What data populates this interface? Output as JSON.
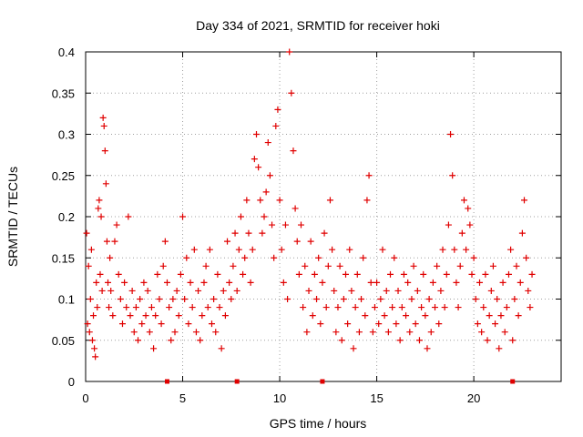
{
  "chart_data": {
    "type": "scatter",
    "title": "Day 334 of 2021, SRMTID for receiver hoki",
    "xlabel": "GPS time / hours",
    "ylabel": "SRMTID / TECUs",
    "xlim": [
      0,
      24.5
    ],
    "ylim": [
      0,
      0.4
    ],
    "x_ticks": [
      0,
      5,
      10,
      15,
      20
    ],
    "y_ticks": [
      0,
      0.05,
      0.1,
      0.15,
      0.2,
      0.25,
      0.3,
      0.35,
      0.4
    ],
    "x_tick_labels": [
      "0",
      "5",
      "10",
      "15",
      "20"
    ],
    "y_tick_labels": [
      "0",
      "0.05",
      "0.1",
      "0.15",
      "0.2",
      "0.25",
      "0.3",
      "0.35",
      "0.4"
    ],
    "grid": true,
    "marker": "plus",
    "color": "#e00000",
    "series": [
      {
        "name": "SRMTID",
        "points": [
          [
            0.05,
            0.18
          ],
          [
            0.1,
            0.07
          ],
          [
            0.15,
            0.14
          ],
          [
            0.2,
            0.06
          ],
          [
            0.25,
            0.1
          ],
          [
            0.3,
            0.16
          ],
          [
            0.35,
            0.05
          ],
          [
            0.4,
            0.08
          ],
          [
            0.45,
            0.04
          ],
          [
            0.5,
            0.03
          ],
          [
            0.55,
            0.12
          ],
          [
            0.6,
            0.09
          ],
          [
            0.65,
            0.21
          ],
          [
            0.7,
            0.22
          ],
          [
            0.75,
            0.13
          ],
          [
            0.8,
            0.2
          ],
          [
            0.85,
            0.11
          ],
          [
            0.9,
            0.32
          ],
          [
            0.95,
            0.31
          ],
          [
            1.0,
            0.28
          ],
          [
            1.05,
            0.24
          ],
          [
            1.1,
            0.17
          ],
          [
            1.15,
            0.12
          ],
          [
            1.2,
            0.09
          ],
          [
            1.25,
            0.15
          ],
          [
            1.3,
            0.11
          ],
          [
            1.4,
            0.08
          ],
          [
            1.5,
            0.17
          ],
          [
            1.6,
            0.19
          ],
          [
            1.7,
            0.13
          ],
          [
            1.8,
            0.1
          ],
          [
            1.9,
            0.07
          ],
          [
            2.0,
            0.12
          ],
          [
            2.1,
            0.09
          ],
          [
            2.2,
            0.2
          ],
          [
            2.3,
            0.08
          ],
          [
            2.4,
            0.11
          ],
          [
            2.5,
            0.06
          ],
          [
            2.6,
            0.09
          ],
          [
            2.7,
            0.05
          ],
          [
            2.8,
            0.1
          ],
          [
            2.9,
            0.07
          ],
          [
            3.0,
            0.12
          ],
          [
            3.1,
            0.08
          ],
          [
            3.2,
            0.11
          ],
          [
            3.3,
            0.06
          ],
          [
            3.4,
            0.09
          ],
          [
            3.5,
            0.04
          ],
          [
            3.6,
            0.08
          ],
          [
            3.7,
            0.13
          ],
          [
            3.8,
            0.1
          ],
          [
            3.9,
            0.07
          ],
          [
            4.0,
            0.14
          ],
          [
            4.1,
            0.17
          ],
          [
            4.2,
            0.12
          ],
          [
            4.3,
            0.09
          ],
          [
            4.4,
            0.05
          ],
          [
            4.5,
            0.1
          ],
          [
            4.6,
            0.06
          ],
          [
            4.7,
            0.11
          ],
          [
            4.8,
            0.08
          ],
          [
            4.9,
            0.13
          ],
          [
            5.0,
            0.2
          ],
          [
            5.1,
            0.1
          ],
          [
            5.2,
            0.15
          ],
          [
            5.3,
            0.07
          ],
          [
            5.4,
            0.12
          ],
          [
            5.5,
            0.09
          ],
          [
            5.6,
            0.16
          ],
          [
            5.7,
            0.06
          ],
          [
            5.8,
            0.11
          ],
          [
            5.9,
            0.05
          ],
          [
            6.0,
            0.08
          ],
          [
            6.1,
            0.12
          ],
          [
            6.2,
            0.14
          ],
          [
            6.3,
            0.09
          ],
          [
            6.4,
            0.16
          ],
          [
            6.5,
            0.07
          ],
          [
            6.6,
            0.1
          ],
          [
            6.7,
            0.06
          ],
          [
            6.8,
            0.13
          ],
          [
            6.9,
            0.09
          ],
          [
            7.0,
            0.04
          ],
          [
            7.1,
            0.11
          ],
          [
            7.2,
            0.08
          ],
          [
            7.3,
            0.17
          ],
          [
            7.4,
            0.12
          ],
          [
            7.5,
            0.1
          ],
          [
            7.6,
            0.14
          ],
          [
            7.7,
            0.18
          ],
          [
            7.8,
            0.11
          ],
          [
            7.9,
            0.16
          ],
          [
            8.0,
            0.2
          ],
          [
            8.1,
            0.13
          ],
          [
            8.2,
            0.15
          ],
          [
            8.3,
            0.22
          ],
          [
            8.4,
            0.18
          ],
          [
            8.5,
            0.12
          ],
          [
            8.6,
            0.16
          ],
          [
            8.7,
            0.27
          ],
          [
            8.8,
            0.3
          ],
          [
            8.9,
            0.26
          ],
          [
            9.0,
            0.22
          ],
          [
            9.1,
            0.18
          ],
          [
            9.2,
            0.2
          ],
          [
            9.3,
            0.23
          ],
          [
            9.4,
            0.29
          ],
          [
            9.5,
            0.25
          ],
          [
            9.6,
            0.19
          ],
          [
            9.7,
            0.15
          ],
          [
            9.8,
            0.31
          ],
          [
            9.9,
            0.33
          ],
          [
            10.0,
            0.22
          ],
          [
            10.1,
            0.16
          ],
          [
            10.2,
            0.12
          ],
          [
            10.3,
            0.19
          ],
          [
            10.4,
            0.1
          ],
          [
            10.5,
            0.4
          ],
          [
            10.6,
            0.35
          ],
          [
            10.7,
            0.28
          ],
          [
            10.8,
            0.21
          ],
          [
            10.9,
            0.17
          ],
          [
            11.0,
            0.13
          ],
          [
            11.1,
            0.19
          ],
          [
            11.2,
            0.09
          ],
          [
            11.3,
            0.14
          ],
          [
            11.4,
            0.06
          ],
          [
            11.5,
            0.11
          ],
          [
            11.6,
            0.17
          ],
          [
            11.7,
            0.08
          ],
          [
            11.8,
            0.13
          ],
          [
            11.9,
            0.1
          ],
          [
            12.0,
            0.15
          ],
          [
            12.1,
            0.07
          ],
          [
            12.2,
            0.12
          ],
          [
            12.3,
            0.18
          ],
          [
            12.4,
            0.09
          ],
          [
            12.5,
            0.14
          ],
          [
            12.6,
            0.22
          ],
          [
            12.7,
            0.16
          ],
          [
            12.8,
            0.11
          ],
          [
            12.9,
            0.06
          ],
          [
            13.0,
            0.09
          ],
          [
            13.1,
            0.14
          ],
          [
            13.2,
            0.05
          ],
          [
            13.3,
            0.1
          ],
          [
            13.4,
            0.13
          ],
          [
            13.5,
            0.07
          ],
          [
            13.6,
            0.16
          ],
          [
            13.7,
            0.11
          ],
          [
            13.8,
            0.04
          ],
          [
            13.9,
            0.09
          ],
          [
            14.0,
            0.13
          ],
          [
            14.1,
            0.06
          ],
          [
            14.2,
            0.1
          ],
          [
            14.3,
            0.15
          ],
          [
            14.4,
            0.08
          ],
          [
            14.5,
            0.22
          ],
          [
            14.6,
            0.25
          ],
          [
            14.7,
            0.12
          ],
          [
            14.8,
            0.06
          ],
          [
            14.9,
            0.09
          ],
          [
            15.0,
            0.12
          ],
          [
            15.1,
            0.07
          ],
          [
            15.2,
            0.1
          ],
          [
            15.3,
            0.16
          ],
          [
            15.4,
            0.08
          ],
          [
            15.5,
            0.11
          ],
          [
            15.6,
            0.06
          ],
          [
            15.7,
            0.13
          ],
          [
            15.8,
            0.09
          ],
          [
            15.9,
            0.15
          ],
          [
            16.0,
            0.07
          ],
          [
            16.1,
            0.11
          ],
          [
            16.2,
            0.05
          ],
          [
            16.3,
            0.09
          ],
          [
            16.4,
            0.13
          ],
          [
            16.5,
            0.08
          ],
          [
            16.6,
            0.12
          ],
          [
            16.7,
            0.06
          ],
          [
            16.8,
            0.1
          ],
          [
            16.9,
            0.14
          ],
          [
            17.0,
            0.07
          ],
          [
            17.1,
            0.11
          ],
          [
            17.2,
            0.05
          ],
          [
            17.3,
            0.09
          ],
          [
            17.4,
            0.13
          ],
          [
            17.5,
            0.08
          ],
          [
            17.6,
            0.04
          ],
          [
            17.7,
            0.1
          ],
          [
            17.8,
            0.06
          ],
          [
            17.9,
            0.12
          ],
          [
            18.0,
            0.09
          ],
          [
            18.1,
            0.14
          ],
          [
            18.2,
            0.07
          ],
          [
            18.3,
            0.11
          ],
          [
            18.4,
            0.16
          ],
          [
            18.5,
            0.09
          ],
          [
            18.6,
            0.13
          ],
          [
            18.7,
            0.19
          ],
          [
            18.8,
            0.3
          ],
          [
            18.9,
            0.25
          ],
          [
            19.0,
            0.16
          ],
          [
            19.1,
            0.12
          ],
          [
            19.2,
            0.09
          ],
          [
            19.3,
            0.14
          ],
          [
            19.4,
            0.18
          ],
          [
            19.5,
            0.22
          ],
          [
            19.6,
            0.16
          ],
          [
            19.7,
            0.21
          ],
          [
            19.8,
            0.19
          ],
          [
            19.9,
            0.13
          ],
          [
            20.0,
            0.15
          ],
          [
            20.1,
            0.1
          ],
          [
            20.2,
            0.07
          ],
          [
            20.3,
            0.12
          ],
          [
            20.4,
            0.06
          ],
          [
            20.5,
            0.09
          ],
          [
            20.6,
            0.13
          ],
          [
            20.7,
            0.05
          ],
          [
            20.8,
            0.08
          ],
          [
            20.9,
            0.11
          ],
          [
            21.0,
            0.14
          ],
          [
            21.1,
            0.07
          ],
          [
            21.2,
            0.1
          ],
          [
            21.3,
            0.04
          ],
          [
            21.4,
            0.08
          ],
          [
            21.5,
            0.12
          ],
          [
            21.6,
            0.06
          ],
          [
            21.7,
            0.09
          ],
          [
            21.8,
            0.13
          ],
          [
            21.9,
            0.16
          ],
          [
            22.0,
            0.05
          ],
          [
            22.1,
            0.1
          ],
          [
            22.2,
            0.14
          ],
          [
            22.3,
            0.08
          ],
          [
            22.4,
            0.12
          ],
          [
            22.5,
            0.18
          ],
          [
            22.6,
            0.22
          ],
          [
            22.7,
            0.15
          ],
          [
            22.8,
            0.11
          ],
          [
            22.9,
            0.09
          ],
          [
            23.0,
            0.13
          ]
        ]
      }
    ],
    "x_markers": [
      4.2,
      7.8,
      12.2,
      22.0
    ]
  }
}
